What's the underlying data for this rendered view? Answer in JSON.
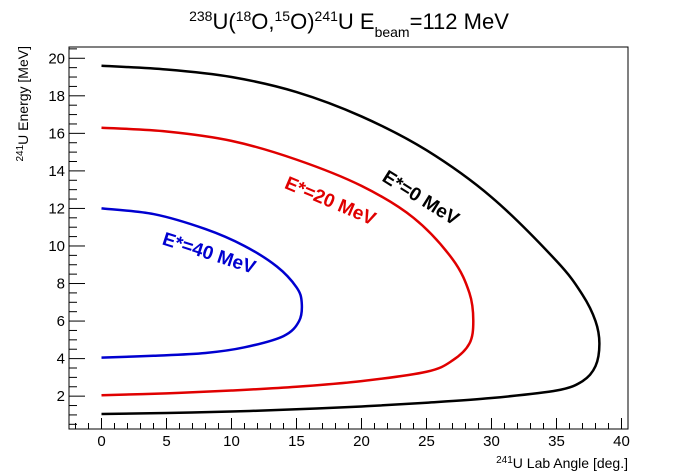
{
  "chart_data": {
    "type": "line",
    "title": {
      "parts": [
        {
          "text": "238",
          "sup": true
        },
        {
          "text": "U(",
          "sup": false
        },
        {
          "text": "18",
          "sup": true
        },
        {
          "text": "O,",
          "sup": false
        },
        {
          "text": "15",
          "sup": true
        },
        {
          "text": "O)",
          "sup": false
        },
        {
          "text": "241",
          "sup": true
        },
        {
          "text": "U E",
          "sup": false
        },
        {
          "text": "beam",
          "sub": true
        },
        {
          "text": "=112 MeV",
          "sup": false
        }
      ]
    },
    "xlabel": {
      "sup": "241",
      "text": "U Lab Angle [deg.]"
    },
    "ylabel": {
      "sup": "241",
      "text": "U Energy [MeV]"
    },
    "xlim": [
      -2.5,
      40.5
    ],
    "ylim": [
      0.25,
      20.6
    ],
    "x_ticks": [
      "0",
      "5",
      "10",
      "15",
      "20",
      "25",
      "30",
      "35",
      "40"
    ],
    "y_ticks": [
      "2",
      "4",
      "6",
      "8",
      "10",
      "12",
      "14",
      "16",
      "18",
      "20"
    ],
    "grid": false,
    "series": [
      {
        "name": "E*=0 MeV",
        "color": "#000000",
        "points": [
          [
            0,
            19.6
          ],
          [
            5,
            19.4
          ],
          [
            10,
            19.0
          ],
          [
            15,
            18.2
          ],
          [
            20,
            16.9
          ],
          [
            25,
            15.1
          ],
          [
            30,
            12.6
          ],
          [
            35,
            9.2
          ],
          [
            37,
            7.4
          ],
          [
            38,
            6.0
          ],
          [
            38.3,
            4.8
          ],
          [
            38,
            3.6
          ],
          [
            37,
            2.8
          ],
          [
            35,
            2.3
          ],
          [
            30,
            1.9
          ],
          [
            25,
            1.65
          ],
          [
            20,
            1.45
          ],
          [
            15,
            1.3
          ],
          [
            10,
            1.18
          ],
          [
            5,
            1.1
          ],
          [
            0,
            1.05
          ]
        ]
      },
      {
        "name": "E*=20 MeV",
        "color": "#e00000",
        "points": [
          [
            0,
            16.3
          ],
          [
            5,
            16.1
          ],
          [
            10,
            15.6
          ],
          [
            15,
            14.6
          ],
          [
            20,
            13.2
          ],
          [
            24,
            11.5
          ],
          [
            27,
            9.3
          ],
          [
            28.3,
            7.5
          ],
          [
            28.6,
            6.0
          ],
          [
            28.3,
            4.8
          ],
          [
            27,
            3.9
          ],
          [
            25,
            3.3
          ],
          [
            20,
            2.8
          ],
          [
            15,
            2.5
          ],
          [
            10,
            2.3
          ],
          [
            5,
            2.15
          ],
          [
            0,
            2.05
          ]
        ]
      },
      {
        "name": "E*=40 MeV",
        "color": "#0000d0",
        "points": [
          [
            0,
            12.0
          ],
          [
            4,
            11.7
          ],
          [
            8,
            10.9
          ],
          [
            11,
            10.0
          ],
          [
            13.5,
            8.9
          ],
          [
            15,
            7.8
          ],
          [
            15.4,
            7.0
          ],
          [
            15.2,
            6.0
          ],
          [
            14,
            5.2
          ],
          [
            11,
            4.6
          ],
          [
            8,
            4.3
          ],
          [
            4,
            4.15
          ],
          [
            0,
            4.05
          ]
        ]
      }
    ],
    "annotations": [
      {
        "text": "E*=0 MeV",
        "color": "#000000",
        "x": 21.5,
        "y": 13.5,
        "angle": 32
      },
      {
        "text": "E*=20 MeV",
        "color": "#e00000",
        "x": 14,
        "y": 13.1,
        "angle": 23
      },
      {
        "text": "E*=40 MeV",
        "color": "#0000d0",
        "x": 4.6,
        "y": 10.1,
        "angle": 18
      }
    ]
  }
}
